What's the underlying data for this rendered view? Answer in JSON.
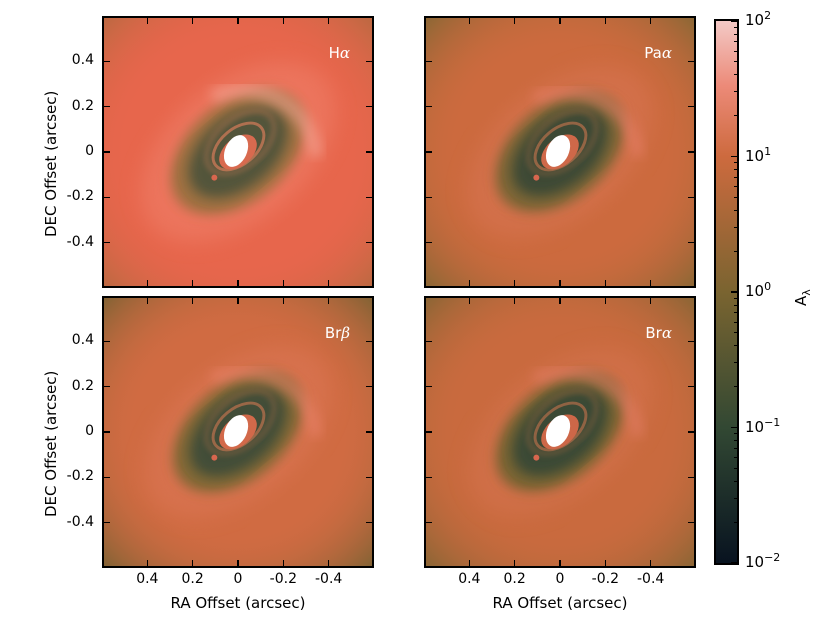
{
  "chart_data": {
    "type": "heatmap",
    "panels": [
      {
        "label_prefix": "H",
        "label_symbol": "α"
      },
      {
        "label_prefix": "Pa",
        "label_symbol": "α"
      },
      {
        "label_prefix": "Br",
        "label_symbol": "β"
      },
      {
        "label_prefix": "Br",
        "label_symbol": "α"
      }
    ],
    "xlabel": "RA Offset (arcsec)",
    "ylabel": "DEC Offset (arcsec)",
    "xticks": [
      "0.4",
      "0.2",
      "0",
      "-0.2",
      "-0.4"
    ],
    "yticks": [
      "0.4",
      "0.2",
      "0",
      "-0.2",
      "-0.4"
    ],
    "xlim": [
      0.6,
      -0.6
    ],
    "ylim": [
      -0.6,
      0.6
    ],
    "colorbar": {
      "label": "A",
      "label_sub": "λ",
      "scale": "log",
      "range": [
        0.01,
        100
      ],
      "tick_base": "10",
      "tick_exps": [
        "2",
        "1",
        "0",
        "−1",
        "−2"
      ]
    },
    "colors": {
      "cmap_low": "#081320",
      "cmap_mid1": "#324833",
      "cmap_mid2": "#7a6430",
      "cmap_mid3": "#cd6a3e",
      "cmap_high": "#f3c9c6",
      "center": "#ffffff"
    }
  }
}
